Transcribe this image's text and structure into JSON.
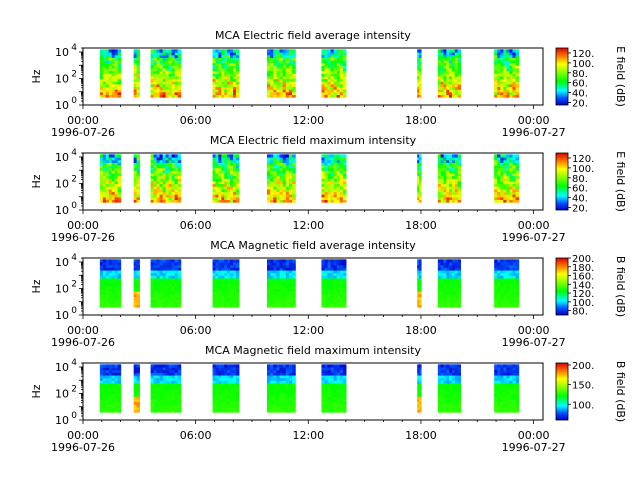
{
  "figure": {
    "background": "#ffffff"
  },
  "chart_data": [
    {
      "type": "heatmap",
      "title": "MCA  Electric field average intensity",
      "ylabel": "Hz",
      "y_scale": "log",
      "ylim": [
        1,
        20000
      ],
      "y_ticks": [
        {
          "value": 1,
          "base": "10",
          "exp": "0"
        },
        {
          "value": 100,
          "base": "10",
          "exp": "2"
        },
        {
          "value": 10000,
          "base": "10",
          "exp": "4"
        }
      ],
      "x_ticks": [
        {
          "h": 0,
          "time": "00:00",
          "date": "1996-07-26"
        },
        {
          "h": 6,
          "time": "06:00",
          "date": ""
        },
        {
          "h": 12,
          "time": "12:00",
          "date": ""
        },
        {
          "h": 18,
          "time": "18:00",
          "date": ""
        },
        {
          "h": 24,
          "time": "00:00",
          "date": "1996-07-27"
        }
      ],
      "xlim_hours": [
        0,
        24.5
      ],
      "colorbar": {
        "label": "E field (dB)",
        "range": [
          15,
          130
        ],
        "ticks": [
          20,
          40,
          60,
          80,
          100,
          120
        ],
        "tick_labels": [
          "20.",
          "40.",
          "60.",
          "80.",
          "100.",
          "120."
        ]
      },
      "segments_hours": [
        [
          0.9,
          2.0
        ],
        [
          2.7,
          3.0
        ],
        [
          3.6,
          5.2
        ],
        [
          6.9,
          8.3
        ],
        [
          9.8,
          11.3
        ],
        [
          12.7,
          14.0
        ],
        [
          17.8,
          18.0
        ],
        [
          18.9,
          20.1
        ],
        [
          21.9,
          23.2
        ]
      ],
      "field": "electric"
    },
    {
      "type": "heatmap",
      "title": "MCA  Electric field maximum intensity",
      "ylabel": "Hz",
      "y_scale": "log",
      "ylim": [
        1,
        20000
      ],
      "y_ticks": [
        {
          "value": 1,
          "base": "10",
          "exp": "0"
        },
        {
          "value": 100,
          "base": "10",
          "exp": "2"
        },
        {
          "value": 10000,
          "base": "10",
          "exp": "4"
        }
      ],
      "x_ticks": [
        {
          "h": 0,
          "time": "00:00",
          "date": "1996-07-26"
        },
        {
          "h": 6,
          "time": "06:00",
          "date": ""
        },
        {
          "h": 12,
          "time": "12:00",
          "date": ""
        },
        {
          "h": 18,
          "time": "18:00",
          "date": ""
        },
        {
          "h": 24,
          "time": "00:00",
          "date": "1996-07-27"
        }
      ],
      "xlim_hours": [
        0,
        24.5
      ],
      "colorbar": {
        "label": "E field (dB)",
        "range": [
          15,
          130
        ],
        "ticks": [
          20,
          40,
          60,
          80,
          100,
          120
        ],
        "tick_labels": [
          "20.",
          "40.",
          "60.",
          "80.",
          "100.",
          "120."
        ]
      },
      "segments_hours": [
        [
          0.9,
          2.0
        ],
        [
          2.7,
          3.0
        ],
        [
          3.6,
          5.2
        ],
        [
          6.9,
          8.3
        ],
        [
          9.8,
          11.3
        ],
        [
          12.7,
          14.0
        ],
        [
          17.8,
          18.0
        ],
        [
          18.9,
          20.1
        ],
        [
          21.9,
          23.2
        ]
      ],
      "field": "electric"
    },
    {
      "type": "heatmap",
      "title": "MCA  Magnetic field average intensity",
      "ylabel": "Hz",
      "y_scale": "log",
      "ylim": [
        1,
        20000
      ],
      "y_ticks": [
        {
          "value": 1,
          "base": "10",
          "exp": "0"
        },
        {
          "value": 100,
          "base": "10",
          "exp": "2"
        },
        {
          "value": 10000,
          "base": "10",
          "exp": "4"
        }
      ],
      "x_ticks": [
        {
          "h": 0,
          "time": "00:00",
          "date": "1996-07-26"
        },
        {
          "h": 6,
          "time": "06:00",
          "date": ""
        },
        {
          "h": 12,
          "time": "12:00",
          "date": ""
        },
        {
          "h": 18,
          "time": "18:00",
          "date": ""
        },
        {
          "h": 24,
          "time": "00:00",
          "date": "1996-07-27"
        }
      ],
      "xlim_hours": [
        0,
        24.5
      ],
      "colorbar": {
        "label": "B field (dB)",
        "range": [
          70,
          200
        ],
        "ticks": [
          80,
          100,
          120,
          140,
          160,
          180,
          200
        ],
        "tick_labels": [
          "80.",
          "100.",
          "120.",
          "140.",
          "160.",
          "180.",
          "200."
        ]
      },
      "segments_hours": [
        [
          0.9,
          2.0
        ],
        [
          2.7,
          3.0
        ],
        [
          3.6,
          5.2
        ],
        [
          6.9,
          8.3
        ],
        [
          9.8,
          11.3
        ],
        [
          12.7,
          14.0
        ],
        [
          17.8,
          18.0
        ],
        [
          18.9,
          20.1
        ],
        [
          21.9,
          23.2
        ]
      ],
      "field": "magnetic"
    },
    {
      "type": "heatmap",
      "title": "MCA  Magnetic field maximum intensity",
      "ylabel": "Hz",
      "y_scale": "log",
      "ylim": [
        1,
        20000
      ],
      "y_ticks": [
        {
          "value": 1,
          "base": "10",
          "exp": "0"
        },
        {
          "value": 100,
          "base": "10",
          "exp": "2"
        },
        {
          "value": 10000,
          "base": "10",
          "exp": "4"
        }
      ],
      "x_ticks": [
        {
          "h": 0,
          "time": "00:00",
          "date": "1996-07-26"
        },
        {
          "h": 6,
          "time": "06:00",
          "date": ""
        },
        {
          "h": 12,
          "time": "12:00",
          "date": ""
        },
        {
          "h": 18,
          "time": "18:00",
          "date": ""
        },
        {
          "h": 24,
          "time": "00:00",
          "date": "1996-07-27"
        }
      ],
      "xlim_hours": [
        0,
        24.5
      ],
      "colorbar": {
        "label": "B field (dB)",
        "range": [
          60,
          205
        ],
        "ticks": [
          100,
          150,
          200
        ],
        "tick_labels": [
          "100.",
          "150.",
          "200."
        ]
      },
      "segments_hours": [
        [
          0.9,
          2.0
        ],
        [
          2.7,
          3.0
        ],
        [
          3.6,
          5.2
        ],
        [
          6.9,
          8.3
        ],
        [
          9.8,
          11.3
        ],
        [
          12.7,
          14.0
        ],
        [
          17.8,
          18.0
        ],
        [
          18.9,
          20.1
        ],
        [
          21.9,
          23.2
        ]
      ],
      "field": "magnetic"
    }
  ]
}
